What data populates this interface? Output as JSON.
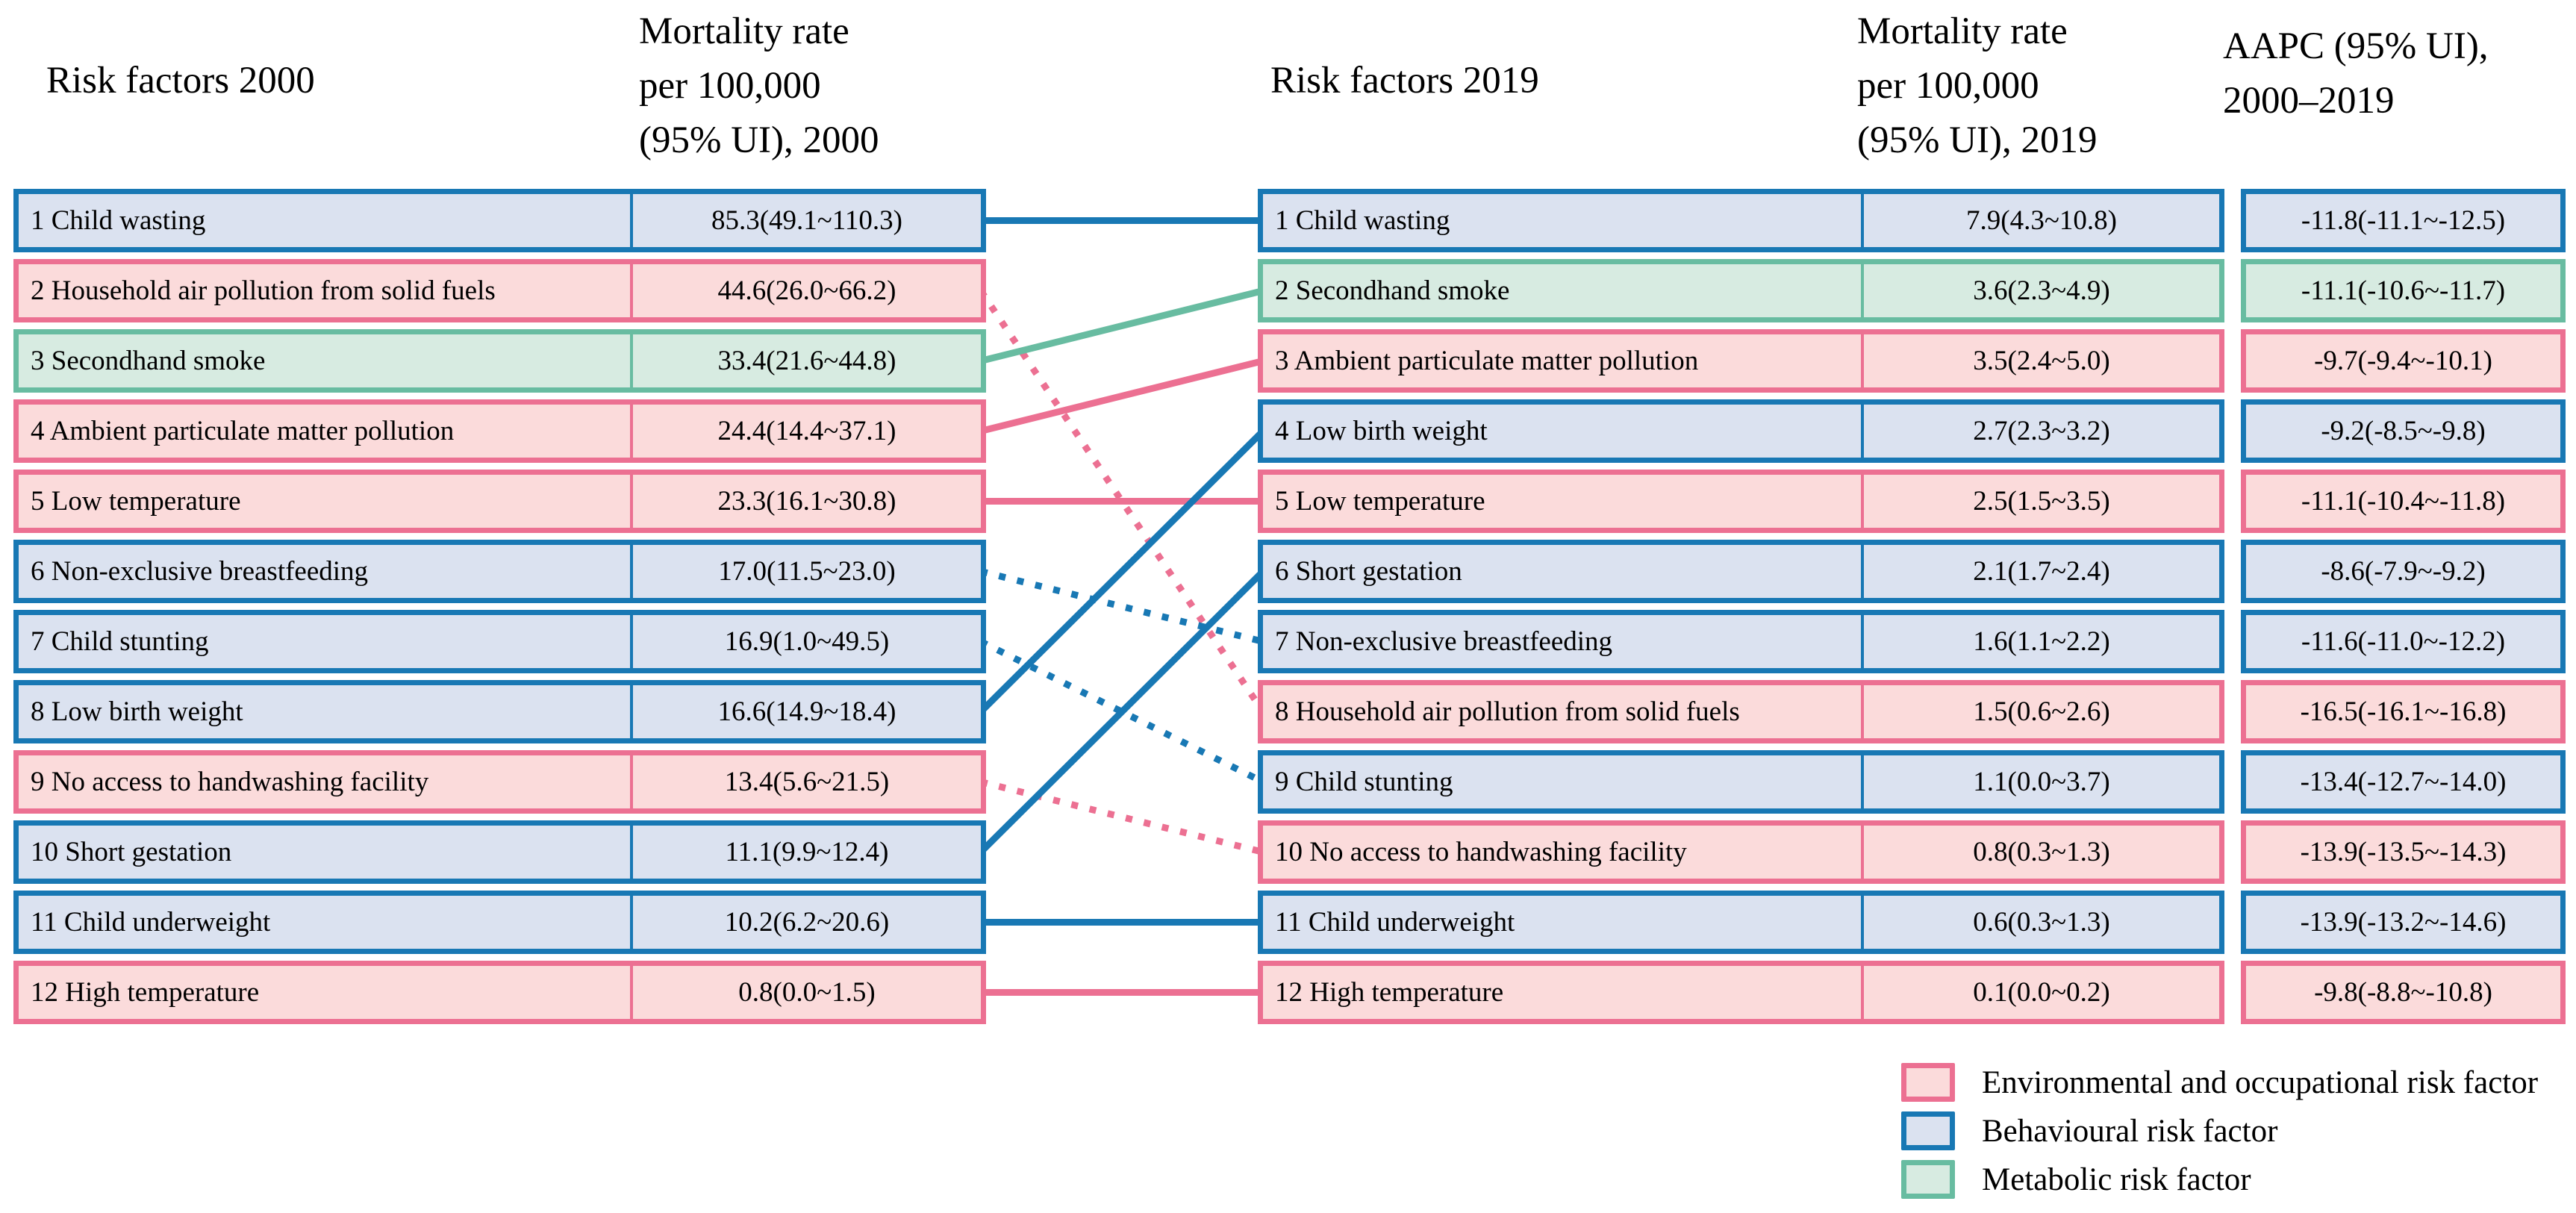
{
  "headers": {
    "left_factor": "Risk factors 2000",
    "left_rate_lines": [
      "Mortality rate",
      "per 100,000",
      "(95% UI), 2000"
    ],
    "right_factor": "Risk factors 2019",
    "right_rate_lines": [
      "Mortality rate",
      "per 100,000",
      "(95% UI), 2019"
    ],
    "aapc_lines": [
      "AAPC (95% UI),",
      "2000–2019"
    ]
  },
  "colors": {
    "behavioural": {
      "accent": "#1878b4",
      "fill": "#dbe2f0"
    },
    "environmental": {
      "accent": "#ec7092",
      "fill": "#fbdbdb"
    },
    "metabolic": {
      "accent": "#68bca1",
      "fill": "#d7ebe1"
    }
  },
  "chart_data": {
    "type": "table",
    "columns": [
      "Risk factors 2000",
      "Mortality rate per 100,000 (95% UI), 2000",
      "Risk factors 2019",
      "Mortality rate per 100,000 (95% UI), 2019",
      "AAPC (95% UI), 2000–2019"
    ],
    "rows_2000": [
      {
        "rank": 1,
        "label": "1 Child wasting",
        "rate": "85.3(49.1~110.3)",
        "type": "behavioural"
      },
      {
        "rank": 2,
        "label": "2 Household air pollution from solid fuels",
        "rate": "44.6(26.0~66.2)",
        "type": "environmental"
      },
      {
        "rank": 3,
        "label": "3 Secondhand smoke",
        "rate": "33.4(21.6~44.8)",
        "type": "metabolic"
      },
      {
        "rank": 4,
        "label": "4 Ambient particulate matter pollution",
        "rate": "24.4(14.4~37.1)",
        "type": "environmental"
      },
      {
        "rank": 5,
        "label": "5 Low temperature",
        "rate": "23.3(16.1~30.8)",
        "type": "environmental"
      },
      {
        "rank": 6,
        "label": "6 Non-exclusive breastfeeding",
        "rate": "17.0(11.5~23.0)",
        "type": "behavioural"
      },
      {
        "rank": 7,
        "label": "7 Child stunting",
        "rate": "16.9(1.0~49.5)",
        "type": "behavioural"
      },
      {
        "rank": 8,
        "label": "8 Low birth weight",
        "rate": "16.6(14.9~18.4)",
        "type": "behavioural"
      },
      {
        "rank": 9,
        "label": "9 No access to handwashing facility",
        "rate": "13.4(5.6~21.5)",
        "type": "environmental"
      },
      {
        "rank": 10,
        "label": "10 Short gestation",
        "rate": "11.1(9.9~12.4)",
        "type": "behavioural"
      },
      {
        "rank": 11,
        "label": "11 Child underweight",
        "rate": "10.2(6.2~20.6)",
        "type": "behavioural"
      },
      {
        "rank": 12,
        "label": "12 High temperature",
        "rate": "0.8(0.0~1.5)",
        "type": "environmental"
      }
    ],
    "rows_2019": [
      {
        "rank": 1,
        "label": "1 Child wasting",
        "rate": "7.9(4.3~10.8)",
        "aapc": "-11.8(-11.1~-12.5)",
        "type": "behavioural"
      },
      {
        "rank": 2,
        "label": "2 Secondhand smoke",
        "rate": "3.6(2.3~4.9)",
        "aapc": "-11.1(-10.6~-11.7)",
        "type": "metabolic"
      },
      {
        "rank": 3,
        "label": "3 Ambient particulate matter pollution",
        "rate": "3.5(2.4~5.0)",
        "aapc": "-9.7(-9.4~-10.1)",
        "type": "environmental"
      },
      {
        "rank": 4,
        "label": "4 Low birth weight",
        "rate": "2.7(2.3~3.2)",
        "aapc": "-9.2(-8.5~-9.8)",
        "type": "behavioural"
      },
      {
        "rank": 5,
        "label": "5 Low temperature",
        "rate": "2.5(1.5~3.5)",
        "aapc": "-11.1(-10.4~-11.8)",
        "type": "environmental"
      },
      {
        "rank": 6,
        "label": "6 Short gestation",
        "rate": "2.1(1.7~2.4)",
        "aapc": "-8.6(-7.9~-9.2)",
        "type": "behavioural"
      },
      {
        "rank": 7,
        "label": "7 Non-exclusive breastfeeding",
        "rate": "1.6(1.1~2.2)",
        "aapc": "-11.6(-11.0~-12.2)",
        "type": "behavioural"
      },
      {
        "rank": 8,
        "label": "8 Household air pollution from solid fuels",
        "rate": "1.5(0.6~2.6)",
        "aapc": "-16.5(-16.1~-16.8)",
        "type": "environmental"
      },
      {
        "rank": 9,
        "label": "9 Child stunting",
        "rate": "1.1(0.0~3.7)",
        "aapc": "-13.4(-12.7~-14.0)",
        "type": "behavioural"
      },
      {
        "rank": 10,
        "label": "10 No access to handwashing facility",
        "rate": "0.8(0.3~1.3)",
        "aapc": "-13.9(-13.5~-14.3)",
        "type": "environmental"
      },
      {
        "rank": 11,
        "label": "11 Child underweight",
        "rate": "0.6(0.3~1.3)",
        "aapc": "-13.9(-13.2~-14.6)",
        "type": "behavioural"
      },
      {
        "rank": 12,
        "label": "12 High temperature",
        "rate": "0.1(0.0~0.2)",
        "aapc": "-9.8(-8.8~-10.8)",
        "type": "environmental"
      }
    ],
    "links": [
      {
        "from": 1,
        "to": 1,
        "type": "behavioural",
        "dashed": false
      },
      {
        "from": 2,
        "to": 8,
        "type": "environmental",
        "dashed": true
      },
      {
        "from": 3,
        "to": 2,
        "type": "metabolic",
        "dashed": false
      },
      {
        "from": 4,
        "to": 3,
        "type": "environmental",
        "dashed": false
      },
      {
        "from": 5,
        "to": 5,
        "type": "environmental",
        "dashed": false
      },
      {
        "from": 6,
        "to": 7,
        "type": "behavioural",
        "dashed": true
      },
      {
        "from": 7,
        "to": 9,
        "type": "behavioural",
        "dashed": true
      },
      {
        "from": 8,
        "to": 4,
        "type": "behavioural",
        "dashed": false
      },
      {
        "from": 9,
        "to": 10,
        "type": "environmental",
        "dashed": true
      },
      {
        "from": 10,
        "to": 6,
        "type": "behavioural",
        "dashed": false
      },
      {
        "from": 11,
        "to": 11,
        "type": "behavioural",
        "dashed": false
      },
      {
        "from": 12,
        "to": 12,
        "type": "environmental",
        "dashed": false
      }
    ],
    "legend": [
      {
        "label": "Environmental and occupational risk factor",
        "type": "environmental"
      },
      {
        "label": "Behavioural risk factor",
        "type": "behavioural"
      },
      {
        "label": "Metabolic risk factor",
        "type": "metabolic"
      }
    ]
  }
}
